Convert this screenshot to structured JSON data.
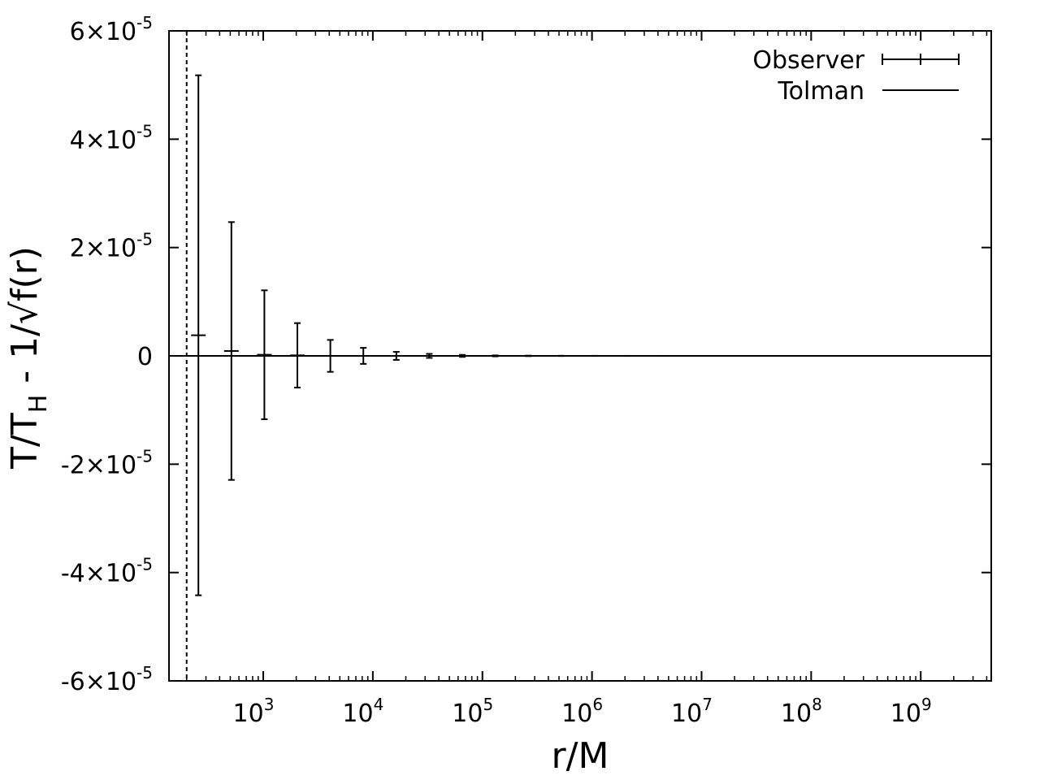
{
  "chart_data": {
    "type": "scatter",
    "title": "",
    "xlabel": "r/M",
    "ylabel": {
      "main": "T/T",
      "sub": "H",
      "rest": " - 1/√f(r)"
    },
    "x_scale": "log",
    "xlim": [
      138,
      4400000000
    ],
    "ylim": [
      -6e-05,
      6e-05
    ],
    "x_ticks": [
      {
        "value": 1000,
        "base": "10",
        "exp": "3"
      },
      {
        "value": 10000,
        "base": "10",
        "exp": "4"
      },
      {
        "value": 100000,
        "base": "10",
        "exp": "5"
      },
      {
        "value": 1000000,
        "base": "10",
        "exp": "6"
      },
      {
        "value": 10000000,
        "base": "10",
        "exp": "7"
      },
      {
        "value": 100000000,
        "base": "10",
        "exp": "8"
      },
      {
        "value": 1000000000,
        "base": "10",
        "exp": "9"
      }
    ],
    "y_ticks": [
      {
        "value": 6e-05,
        "mantissa": "6",
        "times": "×10",
        "exp": "-5",
        "zero": ""
      },
      {
        "value": 4e-05,
        "mantissa": "4",
        "times": "×10",
        "exp": "-5",
        "zero": ""
      },
      {
        "value": 2e-05,
        "mantissa": "2",
        "times": "×10",
        "exp": "-5",
        "zero": ""
      },
      {
        "value": 0,
        "mantissa": "",
        "times": "",
        "exp": "",
        "zero": "0"
      },
      {
        "value": -2e-05,
        "mantissa": "-2",
        "times": "×10",
        "exp": "-5",
        "zero": ""
      },
      {
        "value": -4e-05,
        "mantissa": "-4",
        "times": "×10",
        "exp": "-5",
        "zero": ""
      },
      {
        "value": -6e-05,
        "mantissa": "-6",
        "times": "×10",
        "exp": "-5",
        "zero": ""
      }
    ],
    "legend": {
      "position": "top-right",
      "entries": [
        {
          "label": "Observer",
          "style": "errorbar"
        },
        {
          "label": "Tolman",
          "style": "line"
        }
      ]
    },
    "vertical_reference_line": {
      "x": 200,
      "style": "dashed"
    },
    "series": [
      {
        "name": "Observer",
        "points": [
          {
            "x": 256,
            "y": 3.8e-06,
            "yerr": 4.8e-05
          },
          {
            "x": 512,
            "y": 9e-07,
            "yerr": 2.38e-05
          },
          {
            "x": 1024,
            "y": 2e-07,
            "yerr": 1.19e-05
          },
          {
            "x": 2048,
            "y": 1e-07,
            "yerr": 5.95e-06
          },
          {
            "x": 4096,
            "y": 0,
            "yerr": 2.95e-06
          },
          {
            "x": 8192,
            "y": 0,
            "yerr": 1.48e-06
          },
          {
            "x": 16384,
            "y": 0,
            "yerr": 7.4e-07
          },
          {
            "x": 32768,
            "y": 0,
            "yerr": 3.7e-07
          },
          {
            "x": 65536,
            "y": 0,
            "yerr": 1.85e-07
          },
          {
            "x": 131072,
            "y": 0,
            "yerr": 9e-08
          },
          {
            "x": 262144,
            "y": 0,
            "yerr": 4.5e-08
          },
          {
            "x": 524288,
            "y": 0,
            "yerr": 2.3e-08
          },
          {
            "x": 1048576,
            "y": 0,
            "yerr": 1.1e-08
          },
          {
            "x": 2097152,
            "y": 0,
            "yerr": 6e-09
          },
          {
            "x": 4194304,
            "y": 0,
            "yerr": 3e-09
          },
          {
            "x": 8388608,
            "y": 0,
            "yerr": 1.5e-09
          },
          {
            "x": 16777216,
            "y": 0,
            "yerr": 7e-10
          },
          {
            "x": 33554432,
            "y": 0,
            "yerr": 4e-10
          },
          {
            "x": 67108864,
            "y": 0,
            "yerr": 2e-10
          },
          {
            "x": 134217728,
            "y": 0,
            "yerr": 1e-10
          },
          {
            "x": 268435456,
            "y": 0,
            "yerr": 5e-11
          },
          {
            "x": 536870912,
            "y": 0,
            "yerr": 2e-11
          },
          {
            "x": 1073741824,
            "y": 0,
            "yerr": 1e-11
          }
        ]
      },
      {
        "name": "Tolman",
        "line_y": 0
      }
    ]
  }
}
